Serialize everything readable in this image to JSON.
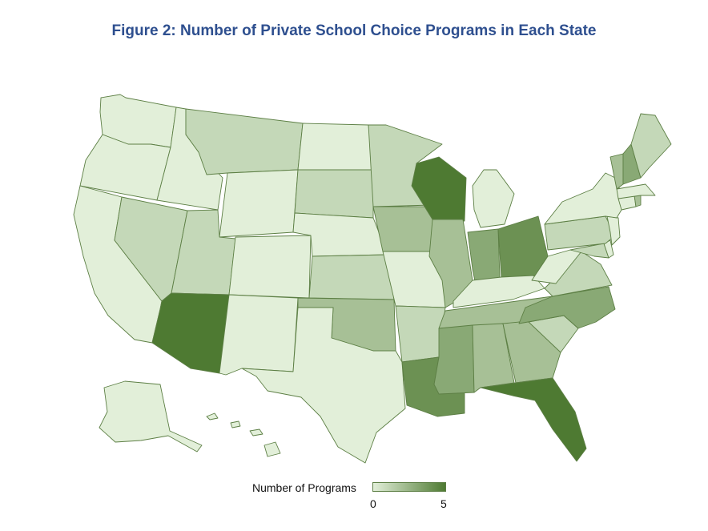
{
  "title": "Figure 2: Number of Private School Choice Programs in Each State",
  "legend": {
    "title": "Number of Programs",
    "min_label": "0",
    "max_label": "5",
    "min": 0,
    "max": 5,
    "color_low": "#e2efd9",
    "color_high": "#4e7a32"
  },
  "colors": {
    "outline": "#5d7f45",
    "title": "#2e4f8f"
  },
  "states": [
    {
      "abbr": "WA",
      "programs": 0
    },
    {
      "abbr": "OR",
      "programs": 0
    },
    {
      "abbr": "CA",
      "programs": 0
    },
    {
      "abbr": "ID",
      "programs": 0
    },
    {
      "abbr": "NV",
      "programs": 1
    },
    {
      "abbr": "MT",
      "programs": 1
    },
    {
      "abbr": "WY",
      "programs": 0
    },
    {
      "abbr": "UT",
      "programs": 1
    },
    {
      "abbr": "AZ",
      "programs": 5
    },
    {
      "abbr": "CO",
      "programs": 0
    },
    {
      "abbr": "NM",
      "programs": 0
    },
    {
      "abbr": "ND",
      "programs": 0
    },
    {
      "abbr": "SD",
      "programs": 1
    },
    {
      "abbr": "NE",
      "programs": 0
    },
    {
      "abbr": "KS",
      "programs": 1
    },
    {
      "abbr": "OK",
      "programs": 2
    },
    {
      "abbr": "TX",
      "programs": 0
    },
    {
      "abbr": "MN",
      "programs": 1
    },
    {
      "abbr": "IA",
      "programs": 2
    },
    {
      "abbr": "MO",
      "programs": 0
    },
    {
      "abbr": "AR",
      "programs": 1
    },
    {
      "abbr": "LA",
      "programs": 4
    },
    {
      "abbr": "WI",
      "programs": 5
    },
    {
      "abbr": "IL",
      "programs": 2
    },
    {
      "abbr": "MI",
      "programs": 0
    },
    {
      "abbr": "IN",
      "programs": 3
    },
    {
      "abbr": "OH",
      "programs": 4
    },
    {
      "abbr": "KY",
      "programs": 0
    },
    {
      "abbr": "TN",
      "programs": 2
    },
    {
      "abbr": "MS",
      "programs": 3
    },
    {
      "abbr": "AL",
      "programs": 2
    },
    {
      "abbr": "GA",
      "programs": 2
    },
    {
      "abbr": "FL",
      "programs": 5
    },
    {
      "abbr": "SC",
      "programs": 1
    },
    {
      "abbr": "NC",
      "programs": 3
    },
    {
      "abbr": "VA",
      "programs": 1
    },
    {
      "abbr": "WV",
      "programs": 0
    },
    {
      "abbr": "MD",
      "programs": 1
    },
    {
      "abbr": "DE",
      "programs": 0
    },
    {
      "abbr": "PA",
      "programs": 1
    },
    {
      "abbr": "NJ",
      "programs": 0
    },
    {
      "abbr": "NY",
      "programs": 0
    },
    {
      "abbr": "CT",
      "programs": 0
    },
    {
      "abbr": "RI",
      "programs": 2
    },
    {
      "abbr": "MA",
      "programs": 0
    },
    {
      "abbr": "VT",
      "programs": 2
    },
    {
      "abbr": "NH",
      "programs": 3
    },
    {
      "abbr": "ME",
      "programs": 1
    },
    {
      "abbr": "AK",
      "programs": 0
    },
    {
      "abbr": "HI",
      "programs": 0
    }
  ]
}
